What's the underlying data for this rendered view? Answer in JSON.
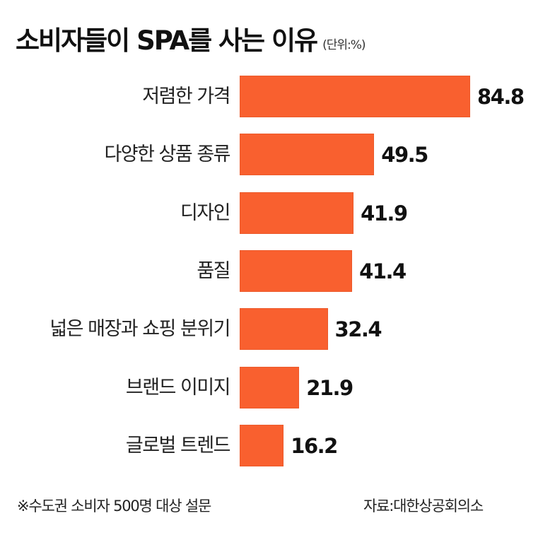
{
  "title": "소비자들이 SPA를 사는 이유",
  "unit": "(단위:%)",
  "footer": {
    "note": "※수도권 소비자 500명 대상 설문",
    "source": "자료:대한상공회의소"
  },
  "colors": {
    "bar": "#f9602f",
    "text": "#111111",
    "background": "#ffffff"
  },
  "chart_data": {
    "type": "bar",
    "orientation": "horizontal",
    "title": "소비자들이 SPA를 사는 이유",
    "subtitle": "(단위:%)",
    "categories": [
      "저렴한 가격",
      "다양한 상품 종류",
      "디자인",
      "품질",
      "넓은 매장과 쇼핑 분위기",
      "브랜드 이미지",
      "글로벌 트렌드"
    ],
    "values": [
      84.8,
      49.5,
      41.9,
      41.4,
      32.4,
      21.9,
      16.2
    ],
    "value_labels": [
      "84.8",
      "49.5",
      "41.9",
      "41.4",
      "32.4",
      "21.9",
      "16.2"
    ],
    "xlabel": "",
    "ylabel": "",
    "unit": "%",
    "grid": false,
    "legend": null,
    "annotations": [
      "※수도권 소비자 500명 대상 설문",
      "자료:대한상공회의소"
    ]
  }
}
